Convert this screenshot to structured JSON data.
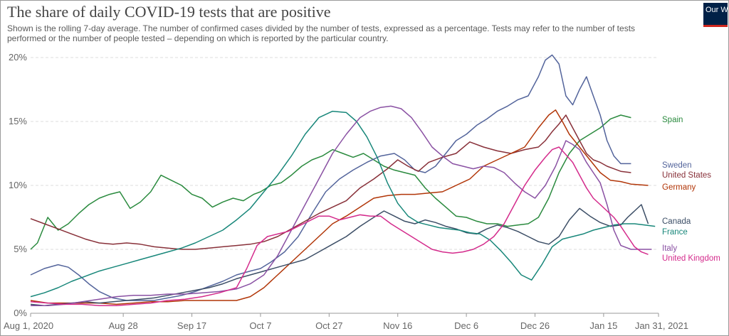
{
  "header": {
    "title": "The share of daily COVID-19 tests that are positive",
    "subtitle": "Shown is the rolling 7-day average. The number of confirmed cases divided by the number of tests, expressed as a percentage. Tests may refer to the number of tests performed or the number of people tested – depending on which is reported by the particular country.",
    "logo_text": "Our World in Data"
  },
  "chart_data": {
    "type": "line",
    "title": "The share of daily COVID-19 tests that are positive",
    "xlabel": "",
    "ylabel": "",
    "ylim": [
      0,
      20
    ],
    "y_ticks": [
      "0%",
      "5%",
      "10%",
      "15%",
      "20%"
    ],
    "y_tick_values": [
      0,
      5,
      10,
      15,
      20
    ],
    "x_ticks": [
      "Aug 1, 2020",
      "Aug 28",
      "Sep 17",
      "Oct 7",
      "Oct 27",
      "Nov 16",
      "Dec 6",
      "Dec 26",
      "Jan 15",
      "Jan 31, 2021"
    ],
    "x_tick_days": [
      0,
      27,
      47,
      67,
      87,
      107,
      127,
      147,
      167,
      183
    ],
    "x_domain": [
      0,
      183
    ],
    "grid": "horizontal dashed",
    "legend": "right",
    "x_unit": "days since Aug 1, 2020",
    "series": [
      {
        "name": "Spain",
        "color": "#2a8a3e",
        "x": [
          0,
          2,
          5,
          8,
          11,
          14,
          17,
          20,
          23,
          26,
          29,
          32,
          35,
          38,
          41,
          44,
          47,
          50,
          53,
          56,
          59,
          62,
          65,
          67,
          70,
          73,
          76,
          79,
          82,
          85,
          88,
          91,
          94,
          97,
          100,
          103,
          106,
          109,
          112,
          115,
          118,
          121,
          124,
          127,
          130,
          133,
          136,
          139,
          142,
          145,
          148,
          151,
          154,
          157,
          160,
          163,
          166,
          169,
          172,
          175
        ],
        "y": [
          5,
          5.5,
          7.5,
          6.5,
          7,
          7.8,
          8.5,
          9,
          9.3,
          9.5,
          8.2,
          8.7,
          9.5,
          10.8,
          10.4,
          10,
          9.3,
          9,
          8.3,
          8.7,
          9,
          8.8,
          9.3,
          9.5,
          10,
          10.2,
          10.8,
          11.5,
          12,
          12.3,
          12.8,
          12.5,
          12.2,
          12.5,
          12,
          11.5,
          11.2,
          11,
          10.8,
          9.8,
          9,
          8.3,
          7.6,
          7.5,
          7.2,
          7,
          7,
          6.8,
          6.9,
          7,
          7.5,
          9,
          11,
          12.5,
          13.5,
          14,
          14.5,
          15.2,
          15.5,
          15.3
        ]
      },
      {
        "name": "Sweden",
        "color": "#53649b",
        "x": [
          0,
          4,
          8,
          11,
          14,
          17,
          20,
          24,
          28,
          32,
          36,
          40,
          44,
          48,
          52,
          56,
          60,
          64,
          67,
          70,
          74,
          78,
          82,
          86,
          90,
          94,
          98,
          102,
          106,
          109,
          112,
          115,
          118,
          121,
          124,
          127,
          130,
          133,
          136,
          139,
          142,
          145,
          148,
          150,
          152,
          154,
          156,
          158,
          160,
          162,
          164,
          166,
          168,
          170,
          172,
          175
        ],
        "y": [
          3,
          3.5,
          3.8,
          3.6,
          3,
          2.3,
          1.7,
          1.2,
          1,
          1,
          1,
          1.2,
          1.4,
          1.7,
          2.1,
          2.5,
          3,
          3.3,
          3.5,
          4,
          4.8,
          6,
          7.8,
          9.5,
          10.5,
          11.2,
          11.8,
          12.3,
          12.5,
          12,
          11.2,
          11,
          11.5,
          12.5,
          13.5,
          14,
          14.7,
          15.2,
          15.8,
          16.2,
          16.7,
          17,
          18.5,
          19.8,
          20.2,
          19.5,
          17,
          16.3,
          17.5,
          18.5,
          17,
          15.5,
          13.5,
          12.3,
          11.7,
          11.7
        ]
      },
      {
        "name": "United States",
        "color": "#883039",
        "x": [
          0,
          4,
          8,
          12,
          16,
          20,
          24,
          28,
          32,
          36,
          40,
          44,
          48,
          52,
          56,
          60,
          64,
          68,
          72,
          76,
          80,
          84,
          88,
          92,
          96,
          100,
          104,
          107,
          110,
          113,
          116,
          120,
          124,
          128,
          132,
          136,
          140,
          144,
          148,
          150,
          152,
          154,
          156,
          158,
          160,
          162,
          164,
          166,
          168,
          170,
          172,
          175
        ],
        "y": [
          7.4,
          7,
          6.6,
          6.2,
          5.8,
          5.5,
          5.4,
          5.5,
          5.4,
          5.2,
          5.1,
          5,
          5,
          5.1,
          5.2,
          5.3,
          5.4,
          5.6,
          6,
          6.6,
          7.2,
          7.8,
          8.3,
          8.8,
          9.8,
          10.5,
          11.3,
          12,
          11.5,
          11.1,
          11.8,
          12.2,
          12.5,
          13.4,
          13,
          12.7,
          12.5,
          12.8,
          13,
          13.5,
          14.2,
          14.8,
          15.5,
          14.5,
          13.5,
          12.5,
          12,
          11.8,
          11.5,
          11.3,
          11.1,
          11
        ]
      },
      {
        "name": "Germany",
        "color": "#b13507",
        "x": [
          0,
          5,
          10,
          15,
          20,
          25,
          30,
          35,
          40,
          45,
          50,
          55,
          60,
          64,
          68,
          72,
          76,
          80,
          84,
          88,
          92,
          96,
          100,
          104,
          108,
          112,
          116,
          120,
          124,
          128,
          132,
          136,
          140,
          144,
          148,
          151,
          153,
          155,
          157,
          160,
          163,
          166,
          169,
          172,
          175,
          180
        ],
        "y": [
          1,
          0.8,
          0.8,
          0.8,
          0.8,
          0.7,
          0.8,
          0.9,
          0.9,
          1,
          1,
          1,
          1,
          1.3,
          2,
          3,
          4,
          5,
          6,
          7,
          7.6,
          8.3,
          9,
          9.2,
          9.3,
          9.3,
          9.4,
          9.5,
          10,
          10.5,
          11.5,
          12,
          12.5,
          13,
          14.5,
          15.5,
          15.9,
          15,
          14,
          13,
          12,
          11,
          10.4,
          10.3,
          10.1,
          10
        ]
      },
      {
        "name": "Canada",
        "color": "#3c4e66",
        "x": [
          0,
          4,
          8,
          12,
          16,
          20,
          24,
          28,
          32,
          36,
          40,
          44,
          48,
          52,
          56,
          60,
          64,
          68,
          72,
          76,
          80,
          84,
          88,
          92,
          96,
          100,
          103,
          106,
          109,
          112,
          115,
          118,
          121,
          124,
          127,
          130,
          133,
          136,
          139,
          142,
          145,
          148,
          151,
          154,
          157,
          160,
          163,
          166,
          169,
          172,
          174,
          176,
          178,
          180
        ],
        "y": [
          0.7,
          0.6,
          0.7,
          0.8,
          0.9,
          0.8,
          0.9,
          1,
          1.1,
          1.2,
          1.4,
          1.6,
          1.8,
          2,
          2.3,
          2.7,
          3,
          3.3,
          3.6,
          3.9,
          4.2,
          4.8,
          5.4,
          6,
          6.8,
          7.5,
          8,
          7.6,
          7.2,
          7,
          7.3,
          7.1,
          6.8,
          6.6,
          6.3,
          6.2,
          6.6,
          6.9,
          6.7,
          6.4,
          6,
          5.6,
          5.4,
          6,
          7.3,
          8.2,
          7.6,
          7.1,
          6.8,
          6.9,
          7.5,
          8,
          8.5,
          7
        ]
      },
      {
        "name": "France",
        "color": "#18877a",
        "x": [
          0,
          4,
          8,
          12,
          16,
          20,
          24,
          28,
          32,
          36,
          40,
          44,
          48,
          52,
          56,
          60,
          64,
          68,
          72,
          76,
          80,
          84,
          88,
          92,
          95,
          98,
          101,
          104,
          107,
          110,
          113,
          116,
          119,
          122,
          125,
          128,
          131,
          134,
          137,
          140,
          143,
          146,
          149,
          152,
          155,
          158,
          161,
          164,
          167,
          170,
          173,
          176,
          179,
          182
        ],
        "y": [
          1.3,
          1.6,
          2,
          2.5,
          2.9,
          3.3,
          3.6,
          3.9,
          4.2,
          4.5,
          4.8,
          5.1,
          5.5,
          6,
          6.5,
          7.3,
          8.2,
          9.5,
          10.8,
          12.3,
          14,
          15.3,
          15.8,
          15.7,
          15,
          13.8,
          12.2,
          10.2,
          8.6,
          7.6,
          7.1,
          6.9,
          6.7,
          6.6,
          6.5,
          6.3,
          6.2,
          5.7,
          4.9,
          4,
          3,
          2.6,
          3.8,
          5.2,
          5.8,
          6,
          6.2,
          6.5,
          6.7,
          6.9,
          7,
          7,
          6.9,
          6.8
        ]
      },
      {
        "name": "Italy",
        "color": "#8a51a3",
        "x": [
          0,
          5,
          10,
          15,
          20,
          25,
          30,
          35,
          40,
          45,
          50,
          55,
          60,
          64,
          68,
          72,
          76,
          80,
          84,
          88,
          92,
          96,
          99,
          102,
          105,
          108,
          111,
          114,
          117,
          120,
          123,
          126,
          129,
          132,
          135,
          138,
          141,
          144,
          147,
          150,
          153,
          156,
          158,
          160,
          162,
          164,
          166,
          168,
          170,
          172,
          175,
          178,
          181
        ],
        "y": [
          0.6,
          0.6,
          0.7,
          0.9,
          1.1,
          1.3,
          1.4,
          1.4,
          1.5,
          1.5,
          1.6,
          1.7,
          1.9,
          2.3,
          3,
          4.5,
          6.5,
          8.5,
          10.5,
          12.5,
          14,
          15.3,
          15.8,
          16.1,
          16.2,
          16,
          15.3,
          14.2,
          13,
          12.3,
          11.7,
          11.5,
          11.3,
          11.5,
          11.4,
          11,
          10.2,
          9.5,
          9,
          10,
          11.5,
          13.5,
          13.2,
          12.8,
          11.8,
          11,
          10.2,
          8.5,
          6.5,
          5.3,
          5,
          5,
          5
        ]
      },
      {
        "name": "United Kingdom",
        "color": "#d42b8c",
        "x": [
          0,
          5,
          10,
          15,
          20,
          25,
          30,
          35,
          40,
          45,
          50,
          55,
          60,
          63,
          66,
          69,
          72,
          75,
          78,
          81,
          84,
          87,
          90,
          93,
          96,
          99,
          102,
          105,
          108,
          111,
          114,
          117,
          120,
          123,
          126,
          129,
          132,
          135,
          138,
          141,
          144,
          147,
          150,
          152,
          154,
          156,
          158,
          160,
          162,
          164,
          166,
          168,
          170,
          172,
          174,
          176,
          178,
          180
        ],
        "y": [
          0.9,
          0.8,
          0.7,
          0.7,
          0.6,
          0.6,
          0.7,
          0.8,
          1,
          1.1,
          1.3,
          1.6,
          2,
          3.5,
          5.3,
          6,
          6.2,
          6.4,
          6.8,
          7.2,
          7.6,
          7.6,
          7.3,
          7.5,
          7.7,
          7.6,
          7.6,
          7,
          6.5,
          6,
          5.5,
          5,
          4.8,
          4.7,
          4.8,
          5,
          5.4,
          6,
          7,
          8.5,
          10,
          11.2,
          12.2,
          12.8,
          13,
          12.4,
          11.8,
          10.8,
          9.8,
          9,
          8.5,
          8,
          7.5,
          6.8,
          6,
          5.2,
          4.8,
          4.6
        ]
      }
    ]
  }
}
